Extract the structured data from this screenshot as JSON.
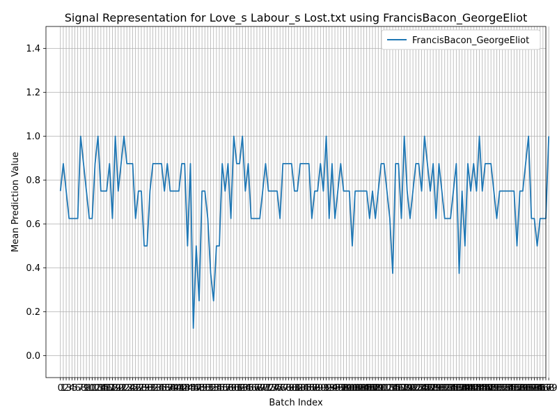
{
  "chart_data": {
    "type": "line",
    "title": "Signal Representation for Love_s Labour_s Lost.txt using FrancisBacon_GeorgeEliot",
    "xlabel": "Batch Index",
    "ylabel": "Mean Prediction Value",
    "xlim": [
      -5,
      168
    ],
    "ylim": [
      -0.1,
      1.5
    ],
    "yticks": [
      "0.0",
      "0.2",
      "0.4",
      "0.6",
      "0.8",
      "1.0",
      "1.2",
      "1.4"
    ],
    "grid": true,
    "legend_position": "top-right",
    "series": [
      {
        "name": "FrancisBacon_GeorgeEliot",
        "color": "#1f77b4",
        "values": [
          0.75,
          0.875,
          0.75,
          0.625,
          0.625,
          0.625,
          0.625,
          1.0,
          0.875,
          0.75,
          0.625,
          0.625,
          0.875,
          1.0,
          0.75,
          0.75,
          0.75,
          0.875,
          0.625,
          1.0,
          0.75,
          0.875,
          1.0,
          0.875,
          0.875,
          0.875,
          0.625,
          0.75,
          0.75,
          0.5,
          0.5,
          0.75,
          0.875,
          0.875,
          0.875,
          0.875,
          0.75,
          0.875,
          0.75,
          0.75,
          0.75,
          0.75,
          0.875,
          0.875,
          0.5,
          0.875,
          0.125,
          0.5,
          0.25,
          0.75,
          0.75,
          0.625,
          0.375,
          0.25,
          0.5,
          0.5,
          0.875,
          0.75,
          0.875,
          0.625,
          1.0,
          0.875,
          0.875,
          1.0,
          0.75,
          0.875,
          0.625,
          0.625,
          0.625,
          0.625,
          0.75,
          0.875,
          0.75,
          0.75,
          0.75,
          0.75,
          0.625,
          0.875,
          0.875,
          0.875,
          0.875,
          0.75,
          0.75,
          0.875,
          0.875,
          0.875,
          0.875,
          0.625,
          0.75,
          0.75,
          0.875,
          0.75,
          1.0,
          0.625,
          0.875,
          0.625,
          0.75,
          0.875,
          0.75,
          0.75,
          0.75,
          0.5,
          0.75,
          0.75,
          0.75,
          0.75,
          0.75,
          0.625,
          0.75,
          0.625,
          0.75,
          0.875,
          0.875,
          0.75,
          0.625,
          0.375,
          0.875,
          0.875,
          0.625,
          1.0,
          0.75,
          0.625,
          0.75,
          0.875,
          0.875,
          0.75,
          1.0,
          0.875,
          0.75,
          0.875,
          0.625,
          0.875,
          0.75,
          0.625,
          0.625,
          0.625,
          0.75,
          0.875,
          0.375,
          0.75,
          0.5,
          0.875,
          0.75,
          0.875,
          0.75,
          1.0,
          0.75,
          0.875,
          0.875,
          0.875,
          0.75,
          0.625,
          0.75,
          0.75,
          0.75,
          0.75,
          0.75,
          0.75,
          0.5,
          0.75,
          0.75,
          0.875,
          1.0,
          0.625,
          0.625,
          0.5,
          0.625,
          0.625,
          0.625,
          1.0
        ]
      }
    ]
  }
}
